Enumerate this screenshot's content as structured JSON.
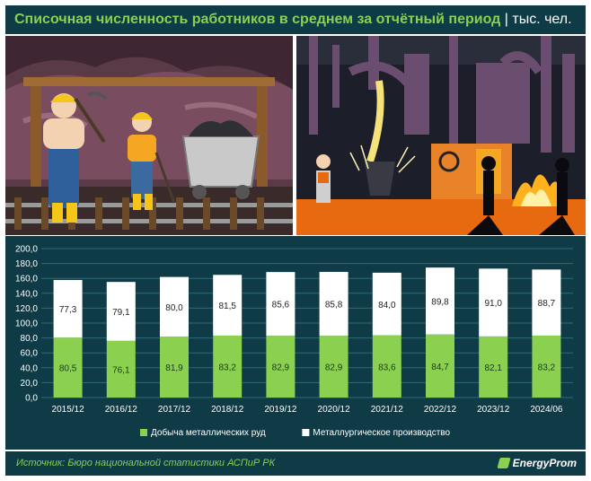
{
  "header": {
    "title": "Списочная численность работников в среднем за отчётный период",
    "unit": " | тыс. чел."
  },
  "footer": {
    "source": "Источник: Бюро национальной статистики АСПиР РК",
    "brand": "EnergyProm"
  },
  "colors": {
    "background": "#0f3b46",
    "mining": "#8bd04f",
    "metallurgy": "#ffffff",
    "title_accent": "#8bd04f"
  },
  "chart_data": {
    "type": "bar",
    "stacked": true,
    "categories": [
      "2015/12",
      "2016/12",
      "2017/12",
      "2018/12",
      "2019/12",
      "2020/12",
      "2021/12",
      "2022/12",
      "2023/12",
      "2024/06"
    ],
    "series": [
      {
        "name": "Добыча металлических руд",
        "values": [
          80.5,
          76.1,
          81.9,
          83.2,
          82.9,
          82.9,
          83.6,
          84.7,
          82.1,
          83.2
        ]
      },
      {
        "name": "Металлургическое производство",
        "values": [
          77.3,
          79.1,
          80.0,
          81.5,
          85.6,
          85.8,
          84.0,
          89.8,
          91.0,
          88.7
        ]
      }
    ],
    "labels": [
      [
        "80,5",
        "76,1",
        "81,9",
        "83,2",
        "82,9",
        "82,9",
        "83,6",
        "84,7",
        "82,1",
        "83,2"
      ],
      [
        "77,3",
        "79,1",
        "80,0",
        "81,5",
        "85,6",
        "85,8",
        "84,0",
        "89,8",
        "91,0",
        "88,7"
      ]
    ],
    "yticks": [
      "0,0",
      "20,0",
      "40,0",
      "60,0",
      "80,0",
      "100,0",
      "120,0",
      "140,0",
      "160,0",
      "180,0",
      "200,0"
    ],
    "ylim": [
      0,
      200
    ],
    "grid": true,
    "legend": "bottom"
  }
}
